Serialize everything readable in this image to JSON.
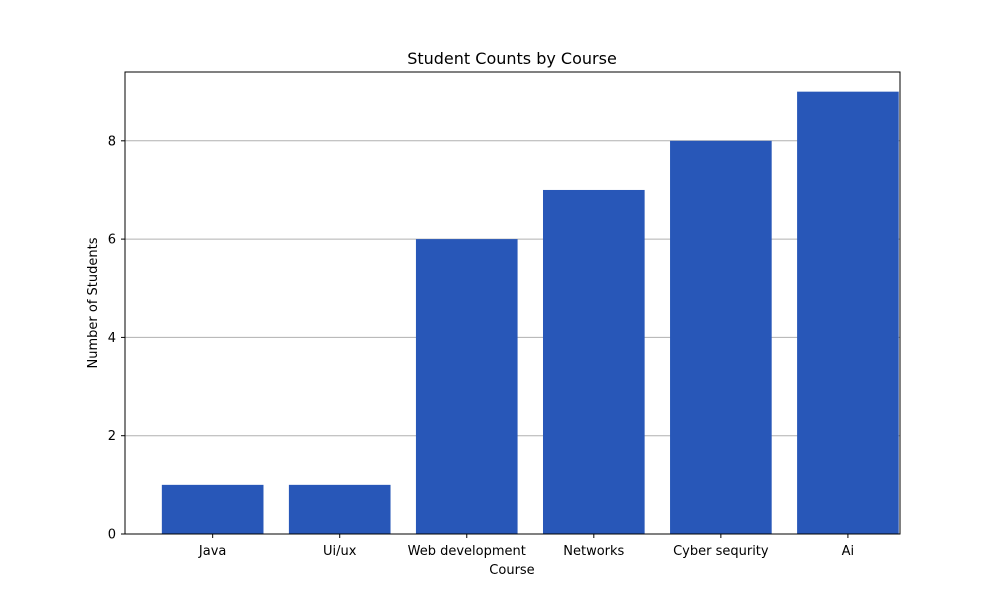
{
  "chart_data": {
    "type": "bar",
    "title": "Student Counts by Course",
    "xlabel": "Course",
    "ylabel": "Number of Students",
    "categories": [
      "Java",
      "Ui/ux",
      "Web development",
      "Networks",
      "Cyber sequrity",
      "Ai"
    ],
    "values": [
      1,
      1,
      6,
      7,
      8,
      9
    ],
    "ylim": [
      0,
      9.4
    ],
    "yticks": [
      0,
      2,
      4,
      6,
      8
    ],
    "grid": "y",
    "bar_color": "#2857b8",
    "grid_color": "#b0b0b0"
  }
}
